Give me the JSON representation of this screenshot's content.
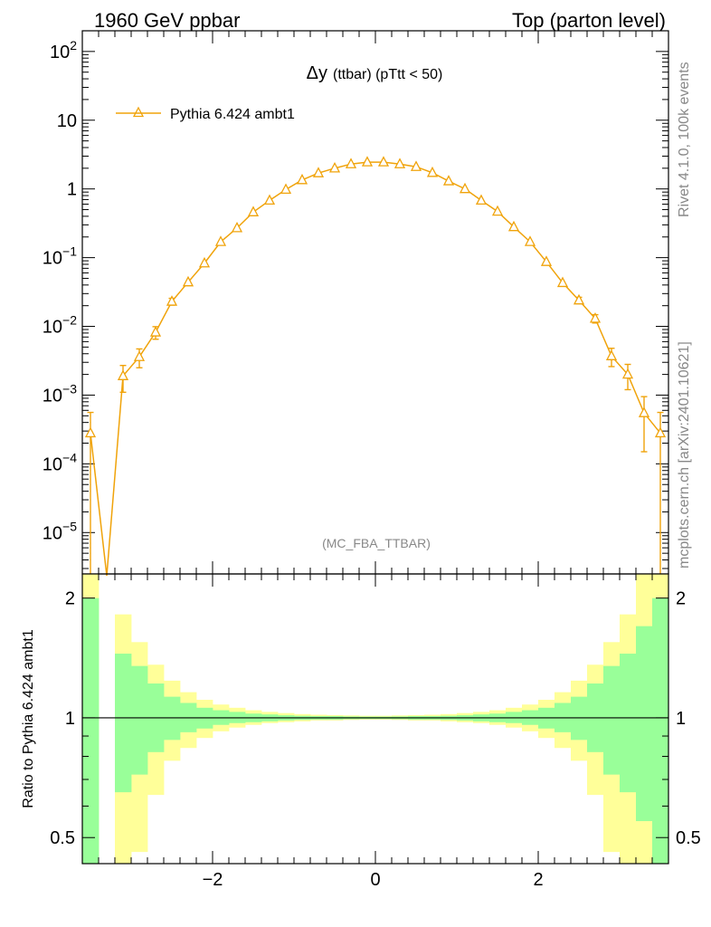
{
  "header": {
    "left": "1960 GeV ppbar",
    "right": "Top (parton level)"
  },
  "side_labels": {
    "rivet": "Rivet 4.1.0,  100k events",
    "mcplots": "mcplots.cern.ch [arXiv:2401.10621]"
  },
  "colors": {
    "series": "#f0a30a",
    "band_inner": "#99ff99",
    "band_outer": "#ffff99"
  },
  "chart_data": [
    {
      "type": "line",
      "panel": "main",
      "title": "Δy",
      "title_small": "(ttbar) (pTtt < 50)",
      "watermark": "(MC_FBA_TTBAR)",
      "yscale": "log",
      "ylim": [
        2.5e-06,
        200
      ],
      "xlim": [
        -3.6,
        3.6
      ],
      "legend_position": "top-left",
      "y_ticks": [
        {
          "value": 100,
          "base": "10",
          "exp": "2"
        },
        {
          "value": 10,
          "base": "10",
          "exp": ""
        },
        {
          "value": 1,
          "base": "1",
          "exp": ""
        },
        {
          "value": 0.1,
          "base": "10",
          "exp": "−1"
        },
        {
          "value": 0.01,
          "base": "10",
          "exp": "−2"
        },
        {
          "value": 0.001,
          "base": "10",
          "exp": "−3"
        },
        {
          "value": 0.0001,
          "base": "10",
          "exp": "−4"
        },
        {
          "value": 1e-05,
          "base": "10",
          "exp": "−5"
        }
      ],
      "series": [
        {
          "name": "Pythia 6.424 ambt1",
          "x": [
            -3.5,
            -3.3,
            -3.1,
            -2.9,
            -2.7,
            -2.5,
            -2.3,
            -2.1,
            -1.9,
            -1.7,
            -1.5,
            -1.3,
            -1.1,
            -0.9,
            -0.7,
            -0.5,
            -0.3,
            -0.1,
            0.1,
            0.3,
            0.5,
            0.7,
            0.9,
            1.1,
            1.3,
            1.5,
            1.7,
            1.9,
            2.1,
            2.3,
            2.5,
            2.7,
            2.9,
            3.1,
            3.3,
            3.5
          ],
          "y": [
            0.00028,
            0,
            0.0019,
            0.0036,
            0.0082,
            0.023,
            0.044,
            0.083,
            0.17,
            0.27,
            0.46,
            0.68,
            0.98,
            1.35,
            1.7,
            2.0,
            2.3,
            2.45,
            2.45,
            2.3,
            2.1,
            1.72,
            1.3,
            1.0,
            0.68,
            0.47,
            0.28,
            0.17,
            0.087,
            0.043,
            0.024,
            0.013,
            0.0037,
            0.002,
            0.00055,
            0.00028
          ],
          "yerr_low": [
            0.00028,
            0,
            0.0008,
            0.0011,
            0.0017,
            0.0026,
            0.0036,
            0.0045,
            0.0065,
            0.008,
            0.011,
            0.013,
            0.016,
            0.018,
            0.02,
            0.022,
            0.024,
            0.025,
            0.025,
            0.024,
            0.023,
            0.02,
            0.018,
            0.016,
            0.013,
            0.011,
            0.008,
            0.0065,
            0.0047,
            0.0033,
            0.0025,
            0.0018,
            0.0011,
            0.0008,
            0.0004,
            0.00028
          ],
          "yerr_high": [
            0.00028,
            0,
            0.0008,
            0.0011,
            0.0017,
            0.0026,
            0.0036,
            0.0045,
            0.0065,
            0.008,
            0.011,
            0.013,
            0.016,
            0.018,
            0.02,
            0.022,
            0.024,
            0.025,
            0.025,
            0.024,
            0.023,
            0.02,
            0.018,
            0.016,
            0.013,
            0.011,
            0.008,
            0.0065,
            0.0047,
            0.0033,
            0.0025,
            0.0018,
            0.0011,
            0.0008,
            0.0004,
            0.00028
          ]
        }
      ]
    },
    {
      "type": "area",
      "panel": "ratio",
      "ylabel": "Ratio to Pythia 6.424 ambt1",
      "yscale": "log",
      "ylim": [
        0.43,
        2.3
      ],
      "xlim": [
        -3.6,
        3.6
      ],
      "x_ticks": [
        {
          "value": -2,
          "label": "−2"
        },
        {
          "value": 0,
          "label": "0"
        },
        {
          "value": 2,
          "label": "2"
        }
      ],
      "y_ticks": [
        {
          "value": 0.5,
          "label": "0.5"
        },
        {
          "value": 1,
          "label": "1"
        },
        {
          "value": 2,
          "label": "2"
        }
      ],
      "bin_edges": [
        -3.6,
        -3.4,
        -3.2,
        -3.0,
        -2.8,
        -2.6,
        -2.4,
        -2.2,
        -2.0,
        -1.8,
        -1.6,
        -1.4,
        -1.2,
        -1.0,
        -0.8,
        -0.6,
        -0.4,
        -0.2,
        0.0,
        0.2,
        0.4,
        0.6,
        0.8,
        1.0,
        1.2,
        1.4,
        1.6,
        1.8,
        2.0,
        2.2,
        2.4,
        2.6,
        2.8,
        3.0,
        3.2,
        3.4,
        3.6
      ],
      "inner_low": [
        0.1,
        null,
        0.65,
        0.72,
        0.82,
        0.88,
        0.92,
        0.94,
        0.96,
        0.97,
        0.975,
        0.98,
        0.985,
        0.988,
        0.99,
        0.99,
        0.992,
        0.993,
        0.993,
        0.992,
        0.99,
        0.99,
        0.988,
        0.985,
        0.98,
        0.975,
        0.97,
        0.96,
        0.94,
        0.92,
        0.88,
        0.82,
        0.72,
        0.65,
        0.55,
        0.1
      ],
      "inner_high": [
        2.0,
        null,
        1.45,
        1.35,
        1.22,
        1.13,
        1.09,
        1.06,
        1.045,
        1.035,
        1.025,
        1.02,
        1.015,
        1.012,
        1.01,
        1.01,
        1.008,
        1.007,
        1.007,
        1.008,
        1.01,
        1.01,
        1.012,
        1.015,
        1.02,
        1.025,
        1.035,
        1.045,
        1.06,
        1.09,
        1.13,
        1.22,
        1.35,
        1.45,
        1.7,
        2.0
      ],
      "outer_low": [
        0.1,
        null,
        0.4,
        0.46,
        0.64,
        0.78,
        0.84,
        0.89,
        0.925,
        0.945,
        0.96,
        0.97,
        0.975,
        0.98,
        0.985,
        0.985,
        0.988,
        0.99,
        0.99,
        0.988,
        0.985,
        0.985,
        0.98,
        0.975,
        0.97,
        0.96,
        0.945,
        0.925,
        0.89,
        0.84,
        0.78,
        0.64,
        0.46,
        0.4,
        0.1,
        0.1
      ],
      "outer_high": [
        2.4,
        null,
        1.82,
        1.55,
        1.36,
        1.24,
        1.16,
        1.11,
        1.08,
        1.06,
        1.045,
        1.035,
        1.028,
        1.022,
        1.018,
        1.016,
        1.014,
        1.012,
        1.012,
        1.014,
        1.016,
        1.018,
        1.022,
        1.028,
        1.035,
        1.045,
        1.06,
        1.08,
        1.11,
        1.16,
        1.24,
        1.36,
        1.55,
        1.82,
        2.4,
        2.4
      ]
    }
  ]
}
